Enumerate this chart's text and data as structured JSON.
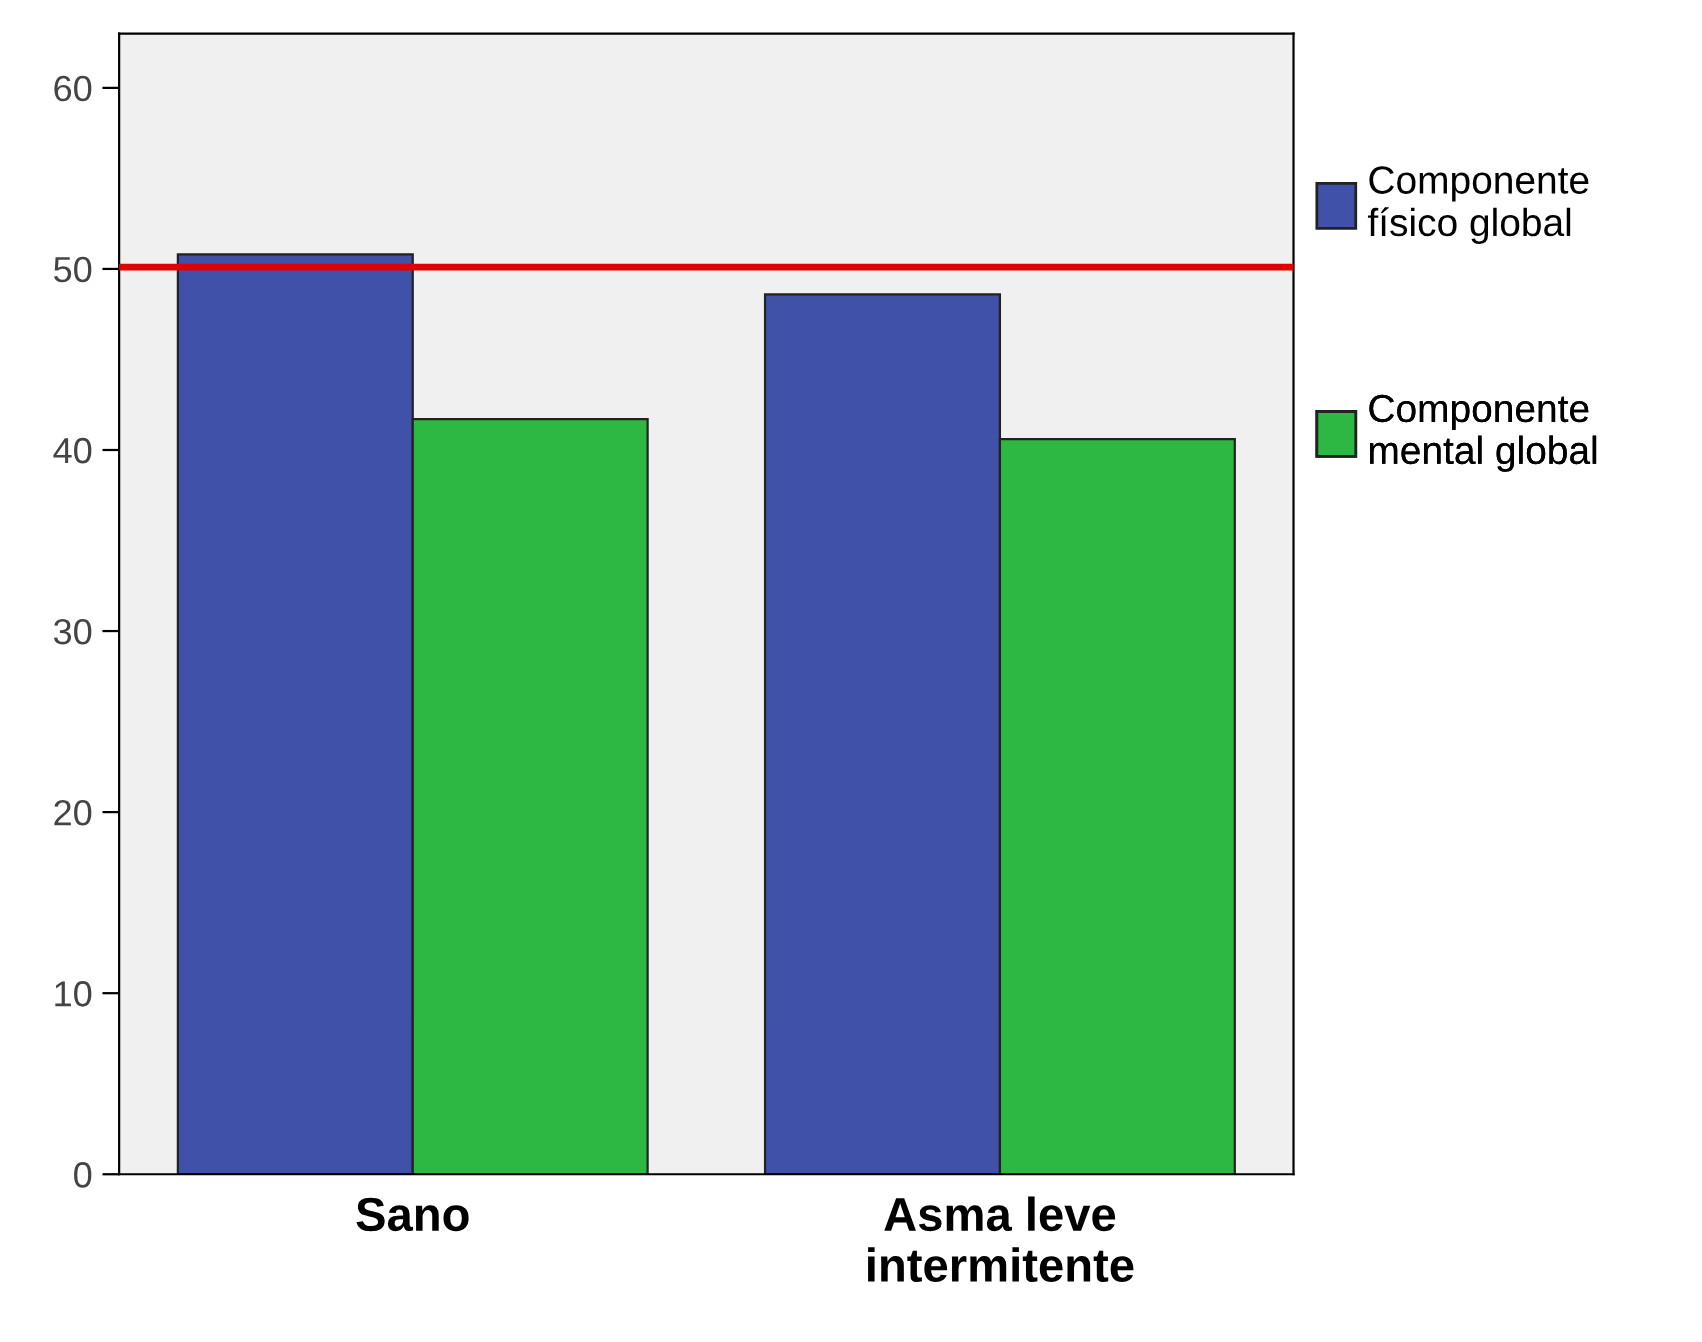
{
  "chart_data": {
    "type": "bar",
    "categories": [
      "Sano",
      "Asma leve\nintermitente"
    ],
    "series": [
      {
        "name": "Componente\nfísico global",
        "color": "#3f51a9",
        "values": [
          50.8,
          48.6
        ]
      },
      {
        "name": "Componente\nmental global",
        "color": "#2db843",
        "values": [
          41.7,
          40.6
        ]
      }
    ],
    "ylim": [
      0,
      63
    ],
    "yticks": [
      0,
      10,
      20,
      30,
      40,
      50,
      60
    ],
    "ref_lines": [
      {
        "axis": "y",
        "value": 50.1,
        "color": "#e00000"
      }
    ],
    "grid": false,
    "legend": "right"
  }
}
